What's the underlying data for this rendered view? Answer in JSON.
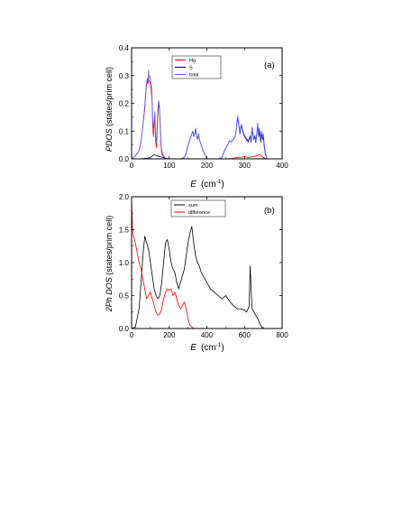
{
  "chart_data": [
    {
      "id": "a",
      "type": "line",
      "panel_label": "(a)",
      "xlabel": "E",
      "xunit": "(cm",
      "xunit_sup": "-1",
      "xunit_close": ")",
      "ylabel_italic": "PDOS",
      "ylabel_rest": "(states/prim cell)",
      "xlim": [
        0,
        400
      ],
      "ylim": [
        0,
        0.4
      ],
      "xticks": [
        0,
        100,
        200,
        300,
        400
      ],
      "xtick_labels": [
        "0",
        "100",
        "200",
        "300",
        "400"
      ],
      "yticks": [
        0.0,
        0.1,
        0.2,
        0.3,
        0.4
      ],
      "ytick_labels": [
        "0.0",
        "0.1",
        "0.2",
        "0.3",
        "0.4"
      ],
      "legend_placement": "top-center",
      "series": [
        {
          "name": "Hg",
          "color": "#ff0000",
          "x": [
            0,
            10,
            20,
            25,
            30,
            35,
            38,
            40,
            42,
            44,
            45,
            46,
            48,
            50,
            52,
            54,
            55,
            56,
            58,
            60,
            62,
            63,
            64,
            66,
            68,
            70,
            72,
            74,
            76,
            78,
            80,
            85,
            90,
            100,
            150,
            200,
            250,
            270,
            280,
            290,
            300,
            310,
            320,
            330,
            335,
            340,
            345,
            350,
            360,
            400
          ],
          "y": [
            0,
            0.01,
            0.03,
            0.06,
            0.12,
            0.18,
            0.24,
            0.27,
            0.28,
            0.27,
            0.3,
            0.28,
            0.28,
            0.27,
            0.25,
            0.22,
            0.18,
            0.12,
            0.08,
            0.12,
            0.15,
            0.1,
            0.06,
            0.04,
            0.1,
            0.16,
            0.2,
            0.18,
            0.12,
            0.05,
            0.02,
            0.005,
            0.001,
            0,
            0,
            0,
            0,
            0.002,
            0.005,
            0.006,
            0.008,
            0.005,
            0.008,
            0.01,
            0.012,
            0.015,
            0.01,
            0.005,
            0,
            0
          ]
        },
        {
          "name": "S",
          "color": "#000080",
          "x": [
            0,
            20,
            40,
            50,
            55,
            60,
            65,
            70,
            75,
            80,
            85,
            90,
            100,
            130,
            140,
            145,
            150,
            155,
            160,
            163,
            165,
            168,
            170,
            173,
            175,
            178,
            180,
            185,
            190,
            200,
            230,
            240,
            250,
            255,
            260,
            265,
            270,
            275,
            278,
            280,
            282,
            285,
            288,
            290,
            292,
            295,
            300,
            305,
            310,
            315,
            318,
            320,
            322,
            325,
            328,
            330,
            333,
            335,
            338,
            340,
            343,
            345,
            348,
            350,
            352,
            355,
            360,
            400
          ],
          "y": [
            0,
            0,
            0.002,
            0.005,
            0.01,
            0.015,
            0.012,
            0.01,
            0.008,
            0.006,
            0.004,
            0.002,
            0,
            0,
            0.005,
            0.02,
            0.05,
            0.07,
            0.09,
            0.1,
            0.08,
            0.09,
            0.11,
            0.08,
            0.07,
            0.09,
            0.07,
            0.05,
            0.03,
            0,
            0,
            0.005,
            0.04,
            0.05,
            0.065,
            0.06,
            0.07,
            0.08,
            0.1,
            0.13,
            0.15,
            0.12,
            0.09,
            0.11,
            0.12,
            0.1,
            0.08,
            0.07,
            0.06,
            0.08,
            0.06,
            0.11,
            0.09,
            0.07,
            0.08,
            0.06,
            0.09,
            0.12,
            0.08,
            0.1,
            0.06,
            0.09,
            0.07,
            0.08,
            0.05,
            0.02,
            0,
            0
          ]
        },
        {
          "name": "total",
          "color": "#5a5aff",
          "x": [
            0,
            10,
            20,
            25,
            30,
            35,
            38,
            40,
            42,
            44,
            45,
            46,
            48,
            50,
            52,
            54,
            55,
            56,
            58,
            60,
            62,
            63,
            64,
            66,
            68,
            70,
            72,
            74,
            76,
            78,
            80,
            85,
            90,
            100,
            130,
            140,
            145,
            150,
            155,
            160,
            163,
            165,
            168,
            170,
            173,
            175,
            178,
            180,
            185,
            190,
            200,
            230,
            240,
            250,
            255,
            260,
            265,
            270,
            275,
            278,
            280,
            282,
            285,
            288,
            290,
            292,
            295,
            300,
            305,
            310,
            315,
            318,
            320,
            322,
            325,
            328,
            330,
            333,
            335,
            338,
            340,
            343,
            345,
            348,
            350,
            352,
            355,
            360,
            400
          ],
          "y": [
            0,
            0.01,
            0.03,
            0.06,
            0.12,
            0.19,
            0.25,
            0.28,
            0.29,
            0.28,
            0.32,
            0.3,
            0.3,
            0.29,
            0.27,
            0.24,
            0.2,
            0.14,
            0.1,
            0.14,
            0.17,
            0.12,
            0.08,
            0.06,
            0.12,
            0.18,
            0.21,
            0.19,
            0.13,
            0.06,
            0.03,
            0.01,
            0.003,
            0,
            0,
            0.005,
            0.02,
            0.05,
            0.07,
            0.09,
            0.1,
            0.08,
            0.09,
            0.11,
            0.08,
            0.07,
            0.09,
            0.07,
            0.05,
            0.03,
            0,
            0,
            0.005,
            0.04,
            0.05,
            0.065,
            0.06,
            0.07,
            0.08,
            0.1,
            0.135,
            0.155,
            0.125,
            0.095,
            0.115,
            0.125,
            0.105,
            0.085,
            0.075,
            0.065,
            0.085,
            0.065,
            0.115,
            0.095,
            0.075,
            0.085,
            0.065,
            0.095,
            0.13,
            0.09,
            0.11,
            0.07,
            0.1,
            0.08,
            0.09,
            0.06,
            0.025,
            0,
            0
          ]
        }
      ]
    },
    {
      "id": "b",
      "type": "line",
      "panel_label": "(b)",
      "xlabel": "E",
      "xunit": "(cm",
      "xunit_sup": "-1",
      "xunit_close": ")",
      "ylabel_italic": "2Ph DOS",
      "ylabel_rest": "(states/prim cell)",
      "xlim": [
        0,
        800
      ],
      "ylim": [
        0,
        2.0
      ],
      "xticks": [
        0,
        200,
        400,
        600,
        800
      ],
      "xtick_labels": [
        "0",
        "200",
        "400",
        "600",
        "800"
      ],
      "yticks": [
        0.0,
        0.5,
        1.0,
        1.5,
        2.0
      ],
      "ytick_labels": [
        "0.0",
        "0.5",
        "1.0",
        "1.5",
        "2.0"
      ],
      "legend_placement": "top-center",
      "series": [
        {
          "name": "sum",
          "color": "#000000",
          "x": [
            0,
            20,
            40,
            50,
            60,
            70,
            80,
            90,
            100,
            110,
            120,
            130,
            140,
            150,
            160,
            170,
            180,
            190,
            200,
            210,
            220,
            230,
            240,
            250,
            260,
            270,
            280,
            290,
            300,
            310,
            320,
            330,
            340,
            350,
            360,
            370,
            380,
            390,
            400,
            420,
            440,
            460,
            480,
            500,
            520,
            540,
            560,
            580,
            600,
            610,
            620,
            625,
            630,
            640,
            650,
            660,
            670,
            680,
            690,
            700,
            720,
            800
          ],
          "y": [
            0,
            0.02,
            0.3,
            0.7,
            1.1,
            1.4,
            1.3,
            1.2,
            1.0,
            0.8,
            0.6,
            0.5,
            0.45,
            0.5,
            0.7,
            1.0,
            1.3,
            1.35,
            1.2,
            1.0,
            0.9,
            0.85,
            0.7,
            0.6,
            0.7,
            0.8,
            0.9,
            1.1,
            1.3,
            1.45,
            1.55,
            1.3,
            1.1,
            1.0,
            0.95,
            0.85,
            0.8,
            0.75,
            0.7,
            0.6,
            0.55,
            0.5,
            0.45,
            0.5,
            0.42,
            0.35,
            0.3,
            0.3,
            0.28,
            0.25,
            0.3,
            0.35,
            0.95,
            0.3,
            0.25,
            0.2,
            0.15,
            0.08,
            0.03,
            0,
            0,
            0
          ]
        },
        {
          "name": "difference",
          "color": "#ff0000",
          "x": [
            0,
            5,
            10,
            20,
            30,
            40,
            50,
            60,
            70,
            80,
            90,
            100,
            110,
            120,
            130,
            140,
            150,
            160,
            170,
            180,
            190,
            200,
            210,
            220,
            230,
            240,
            250,
            260,
            270,
            280,
            290,
            300,
            310,
            320,
            330,
            340,
            400,
            800
          ],
          "y": [
            1.95,
            1.5,
            1.4,
            1.3,
            1.15,
            1.0,
            0.9,
            0.75,
            0.6,
            0.45,
            0.5,
            0.55,
            0.45,
            0.35,
            0.25,
            0.2,
            0.22,
            0.3,
            0.45,
            0.55,
            0.6,
            0.58,
            0.6,
            0.5,
            0.55,
            0.45,
            0.35,
            0.3,
            0.35,
            0.4,
            0.3,
            0.15,
            0.05,
            0.02,
            0.005,
            0,
            0,
            0
          ]
        }
      ]
    }
  ]
}
